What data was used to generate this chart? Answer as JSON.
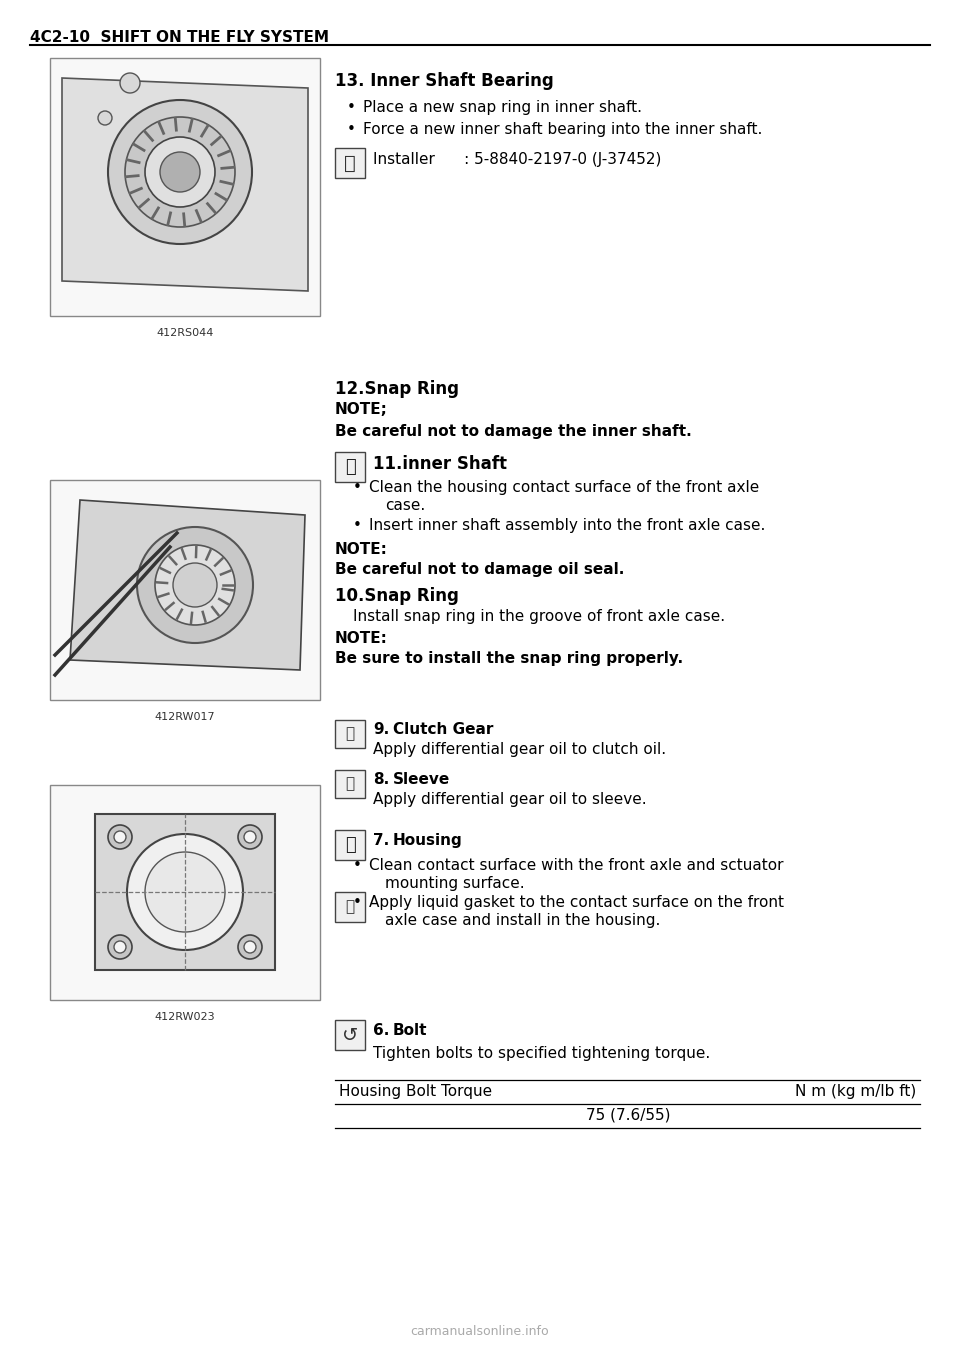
{
  "header_text": "4C2-10  SHIFT ON THE FLY SYSTEM",
  "bg_color": "#ffffff",
  "section13_title": "13. Inner Shaft Bearing",
  "section13_bullet1": "Place a new snap ring in inner shaft.",
  "section13_bullet2": "Force a new inner shaft bearing into the inner shaft.",
  "section13_installer": "Installer      : 5-8840-2197-0 (J-37452)",
  "image1_label": "412RS044",
  "section12_title": "12.Snap Ring",
  "section12_note1": "NOTE;",
  "section12_bold1": "Be careful not to damage the inner shaft.",
  "section11_title": "11.inner Shaft",
  "section11_bullet1": "Clean the housing contact surface of the front axle",
  "section11_bullet1b": "case.",
  "section11_bullet2": "Insert inner shaft assembly into the front axle case.",
  "section11_note": "NOTE:",
  "section11_bold2": "Be careful not to damage oil seal.",
  "section10_title": "10.Snap Ring",
  "section10_text": "Install snap ring in the groove of front axle case.",
  "section10_note": "NOTE:",
  "section10_bold3": "Be sure to install the snap ring properly.",
  "image2_label": "412RW017",
  "section9_num": "9.",
  "section9_title": "Clutch Gear",
  "section9_text": "Apply differential gear oil to clutch oil.",
  "section8_num": "8.",
  "section8_title": "Sleeve",
  "section8_text": "Apply differential gear oil to sleeve.",
  "section7_num": "7.",
  "section7_title": "Housing",
  "section7_bullet1": "Clean contact surface with the front axle and sctuator",
  "section7_bullet1b": "mounting surface.",
  "section7_bullet2": "Apply liquid gasket to the contact surface on the front",
  "section7_bullet2b": "axle case and install in the housing.",
  "image3_label": "412RW023",
  "section6_num": "6.",
  "section6_title": "Bolt",
  "section6_text": "Tighten bolts to specified tightening torque.",
  "torque_label": "Housing Bolt Torque",
  "torque_unit": "N m (kg m/lb ft)",
  "torque_value": "75 (7.6/55)",
  "watermark": "carmanualsonline.info"
}
